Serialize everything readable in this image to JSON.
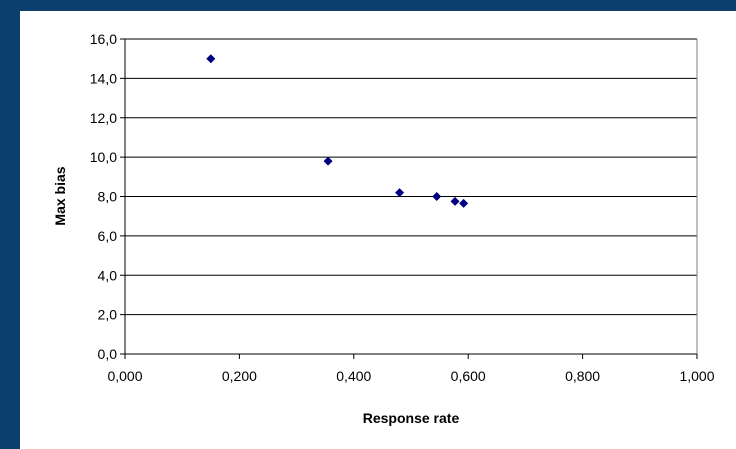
{
  "chart_data": {
    "type": "scatter",
    "xlabel": "Response rate",
    "ylabel": "Max bias",
    "xlim": [
      0,
      1
    ],
    "ylim": [
      0,
      16
    ],
    "x_ticks": [
      "0,000",
      "0,200",
      "0,400",
      "0,600",
      "0,800",
      "1,000"
    ],
    "y_ticks": [
      "0,0",
      "2,0",
      "4,0",
      "6,0",
      "8,0",
      "10,0",
      "12,0",
      "14,0",
      "16,0"
    ],
    "grid": "horizontal",
    "legend": "none",
    "points": [
      {
        "x": 0.15,
        "y": 15.0
      },
      {
        "x": 0.355,
        "y": 9.8
      },
      {
        "x": 0.48,
        "y": 8.2
      },
      {
        "x": 0.545,
        "y": 8.0
      },
      {
        "x": 0.577,
        "y": 7.75
      },
      {
        "x": 0.592,
        "y": 7.65
      }
    ],
    "colors": {
      "marker": "#000080",
      "grid": "#000000",
      "frame": "#0d3f6e",
      "background": "#ffffff"
    }
  }
}
